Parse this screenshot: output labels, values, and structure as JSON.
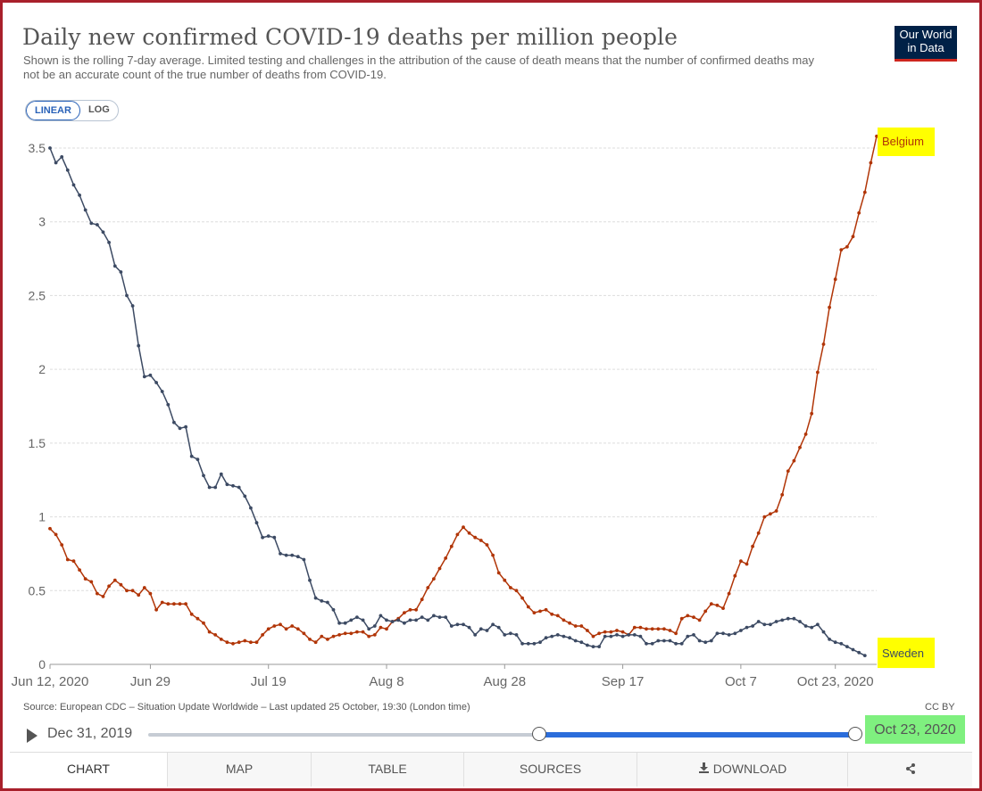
{
  "header": {
    "title": "Daily new confirmed COVID-19 deaths per million people",
    "subtitle": "Shown is the rolling 7-day average. Limited testing and challenges in the attribution of the cause of death means that the number of confirmed deaths may not be an accurate count of the true number of deaths from COVID-19.",
    "logo_line1": "Our World",
    "logo_line2": "in Data"
  },
  "scale": {
    "linear_label": "LINEAR",
    "log_label": "LOG",
    "selected": "LINEAR"
  },
  "chart_data": {
    "type": "line",
    "title": "Daily new confirmed COVID-19 deaths per million people",
    "xlabel": "",
    "ylabel": "",
    "x_range": [
      "2020-06-12",
      "2020-10-23"
    ],
    "ylim": [
      0,
      3.5
    ],
    "y_ticks": [
      "0",
      "0.5",
      "1",
      "1.5",
      "2",
      "2.5",
      "3",
      "3.5"
    ],
    "y_tick_values": [
      0,
      0.5,
      1,
      1.5,
      2,
      2.5,
      3,
      3.5
    ],
    "x_ticks": [
      "Jun 12, 2020",
      "Jun 29",
      "Jul 19",
      "Aug 8",
      "Aug 28",
      "Sep 17",
      "Oct 7",
      "Oct 23, 2020"
    ],
    "x_tick_days": [
      0,
      17,
      37,
      57,
      77,
      97,
      117,
      133
    ],
    "grid": true,
    "legend": "inline-right",
    "series": [
      {
        "name": "Belgium",
        "color": "#b13507",
        "highlight": "#ffff00",
        "values": [
          0.92,
          0.88,
          0.81,
          0.71,
          0.7,
          0.64,
          0.58,
          0.56,
          0.48,
          0.46,
          0.53,
          0.57,
          0.54,
          0.5,
          0.5,
          0.47,
          0.52,
          0.48,
          0.37,
          0.42,
          0.41,
          0.41,
          0.41,
          0.41,
          0.34,
          0.31,
          0.28,
          0.22,
          0.2,
          0.17,
          0.15,
          0.14,
          0.15,
          0.16,
          0.15,
          0.15,
          0.2,
          0.24,
          0.26,
          0.27,
          0.24,
          0.26,
          0.24,
          0.21,
          0.17,
          0.15,
          0.19,
          0.17,
          0.19,
          0.2,
          0.21,
          0.21,
          0.22,
          0.22,
          0.19,
          0.2,
          0.25,
          0.24,
          0.29,
          0.31,
          0.35,
          0.37,
          0.37,
          0.44,
          0.52,
          0.58,
          0.65,
          0.72,
          0.8,
          0.88,
          0.93,
          0.89,
          0.86,
          0.84,
          0.81,
          0.74,
          0.62,
          0.57,
          0.52,
          0.5,
          0.45,
          0.39,
          0.35,
          0.36,
          0.37,
          0.34,
          0.33,
          0.3,
          0.28,
          0.26,
          0.26,
          0.23,
          0.19,
          0.21,
          0.22,
          0.22,
          0.23,
          0.22,
          0.2,
          0.25,
          0.25,
          0.24,
          0.24,
          0.24,
          0.24,
          0.23,
          0.21,
          0.31,
          0.33,
          0.32,
          0.3,
          0.36,
          0.41,
          0.4,
          0.38,
          0.48,
          0.6,
          0.7,
          0.68,
          0.8,
          0.89,
          1.0,
          1.02,
          1.04,
          1.15,
          1.31,
          1.38,
          1.47,
          1.56,
          1.7,
          1.98,
          2.17,
          2.42,
          2.61,
          2.81,
          2.83,
          2.9,
          3.06,
          3.2,
          3.4,
          3.58
        ]
      },
      {
        "name": "Sweden",
        "color": "#3c4a63",
        "highlight": "#ffff00",
        "values": [
          3.5,
          3.4,
          3.44,
          3.35,
          3.25,
          3.18,
          3.08,
          2.99,
          2.98,
          2.93,
          2.86,
          2.7,
          2.66,
          2.5,
          2.43,
          2.16,
          1.95,
          1.96,
          1.91,
          1.85,
          1.76,
          1.64,
          1.6,
          1.61,
          1.41,
          1.39,
          1.28,
          1.2,
          1.2,
          1.29,
          1.22,
          1.21,
          1.2,
          1.14,
          1.06,
          0.96,
          0.86,
          0.87,
          0.86,
          0.75,
          0.74,
          0.74,
          0.73,
          0.71,
          0.57,
          0.45,
          0.43,
          0.42,
          0.37,
          0.28,
          0.28,
          0.3,
          0.32,
          0.3,
          0.24,
          0.26,
          0.33,
          0.3,
          0.29,
          0.3,
          0.28,
          0.3,
          0.3,
          0.32,
          0.3,
          0.33,
          0.32,
          0.32,
          0.26,
          0.27,
          0.27,
          0.25,
          0.2,
          0.24,
          0.23,
          0.27,
          0.25,
          0.2,
          0.21,
          0.2,
          0.14,
          0.14,
          0.14,
          0.15,
          0.18,
          0.19,
          0.2,
          0.19,
          0.18,
          0.16,
          0.15,
          0.13,
          0.12,
          0.12,
          0.19,
          0.19,
          0.2,
          0.19,
          0.2,
          0.2,
          0.19,
          0.14,
          0.14,
          0.16,
          0.16,
          0.16,
          0.14,
          0.14,
          0.19,
          0.2,
          0.16,
          0.15,
          0.16,
          0.21,
          0.21,
          0.2,
          0.21,
          0.23,
          0.25,
          0.26,
          0.29,
          0.27,
          0.27,
          0.29,
          0.3,
          0.31,
          0.31,
          0.29,
          0.26,
          0.25,
          0.27,
          0.22,
          0.17,
          0.15,
          0.14,
          0.12,
          0.1,
          0.08,
          0.06
        ]
      }
    ]
  },
  "footer": {
    "source": "Source: European CDC – Situation Update Worldwide – Last updated 25 October, 19:30 (London time)",
    "license": "CC BY"
  },
  "timeline": {
    "start_date": "Dec 31, 2019",
    "end_date": "Oct 23, 2020",
    "play_icon": "play-icon",
    "selection_start_fraction": 0.59,
    "selection_end_fraction": 1.0
  },
  "tabs": [
    {
      "label": "CHART",
      "active": true
    },
    {
      "label": "MAP"
    },
    {
      "label": "TABLE"
    },
    {
      "label": "SOURCES"
    },
    {
      "label": "DOWNLOAD",
      "icon": "download-icon"
    },
    {
      "label": "",
      "icon": "share-icon"
    }
  ]
}
